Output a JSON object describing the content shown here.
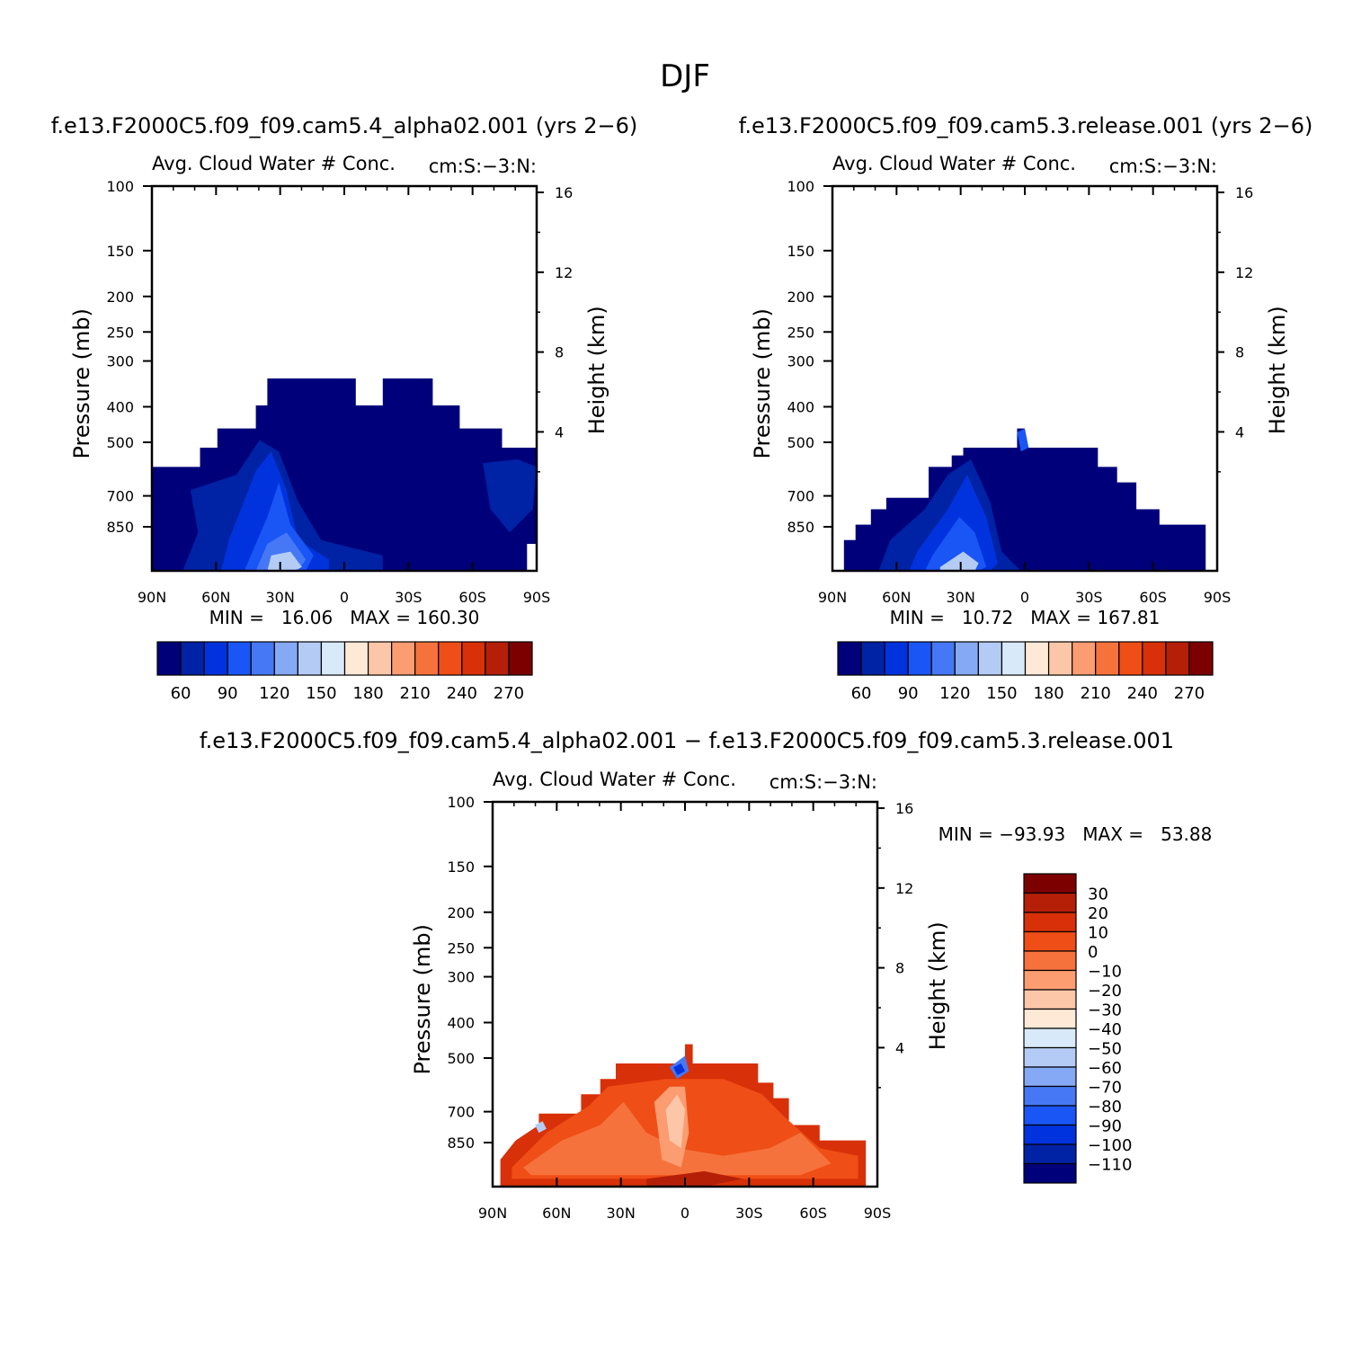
{
  "figure_title": "DJF",
  "colors": {
    "sequential": [
      "#00007a",
      "#0022a5",
      "#0033dd",
      "#1a55f5",
      "#4678f5",
      "#85a9f5",
      "#b4ccf5",
      "#d8eafa",
      "#fde9d6",
      "#fcc6a8",
      "#fb9c71",
      "#f6723c",
      "#ef4e16",
      "#d83008",
      "#b51f08",
      "#7d0000"
    ],
    "difference": [
      "#00007a",
      "#0022a5",
      "#0033dd",
      "#1a55f5",
      "#4678f5",
      "#85a9f5",
      "#b4ccf5",
      "#d8eafa",
      "#fde9d6",
      "#fcc6a8",
      "#fb9c71",
      "#f6723c",
      "#ef4e16",
      "#d83008",
      "#b51f08",
      "#7d0000"
    ]
  },
  "chart_data": [
    {
      "type": "contour",
      "case_title": "f.e13.F2000C5.f09_f09.cam5.4_alpha02.001 (yrs 2−6)",
      "title": "Avg. Cloud Water # Conc.",
      "units": "cm:S:−3:N:",
      "ylabel": "Pressure (mb)",
      "y2label": "Height (km)",
      "x_ticks": [
        "90N",
        "60N",
        "30N",
        "0",
        "30S",
        "60S",
        "90S"
      ],
      "p_ticks": [
        100,
        150,
        200,
        250,
        300,
        400,
        500,
        700,
        850
      ],
      "z_ticks": [
        16,
        12,
        8,
        4
      ],
      "stats_text": "MIN =   16.06   MAX = 160.30",
      "min": 16.06,
      "max": 160.3,
      "colorbar": {
        "orientation": "horizontal",
        "labels": [
          "60",
          "90",
          "120",
          "150",
          "180",
          "210",
          "240",
          "270"
        ]
      }
    },
    {
      "type": "contour",
      "case_title": "f.e13.F2000C5.f09_f09.cam5.3.release.001 (yrs 2−6)",
      "title": "Avg. Cloud Water # Conc.",
      "units": "cm:S:−3:N:",
      "ylabel": "Pressure (mb)",
      "y2label": "Height (km)",
      "x_ticks": [
        "90N",
        "60N",
        "30N",
        "0",
        "30S",
        "60S",
        "90S"
      ],
      "p_ticks": [
        100,
        150,
        200,
        250,
        300,
        400,
        500,
        700,
        850
      ],
      "z_ticks": [
        16,
        12,
        8,
        4
      ],
      "stats_text": "MIN =   10.72   MAX = 167.81",
      "min": 10.72,
      "max": 167.81,
      "colorbar": {
        "orientation": "horizontal",
        "labels": [
          "60",
          "90",
          "120",
          "150",
          "180",
          "210",
          "240",
          "270"
        ]
      }
    },
    {
      "type": "contour",
      "case_title": "f.e13.F2000C5.f09_f09.cam5.4_alpha02.001 − f.e13.F2000C5.f09_f09.cam5.3.release.001",
      "title": "Avg. Cloud Water # Conc.",
      "units": "cm:S:−3:N:",
      "ylabel": "Pressure (mb)",
      "y2label": "Height (km)",
      "x_ticks": [
        "90N",
        "60N",
        "30N",
        "0",
        "30S",
        "60S",
        "90S"
      ],
      "p_ticks": [
        100,
        150,
        200,
        250,
        300,
        400,
        500,
        700,
        850
      ],
      "z_ticks": [
        16,
        12,
        8,
        4
      ],
      "stats_text": "MIN = −93.93   MAX =   53.88",
      "min": -93.93,
      "max": 53.88,
      "colorbar": {
        "orientation": "vertical",
        "labels": [
          "30",
          "20",
          "10",
          "0",
          "−10",
          "−20",
          "−30",
          "−40",
          "−50",
          "−60",
          "−70",
          "−80",
          "−90",
          "−100",
          "−110"
        ]
      }
    }
  ]
}
